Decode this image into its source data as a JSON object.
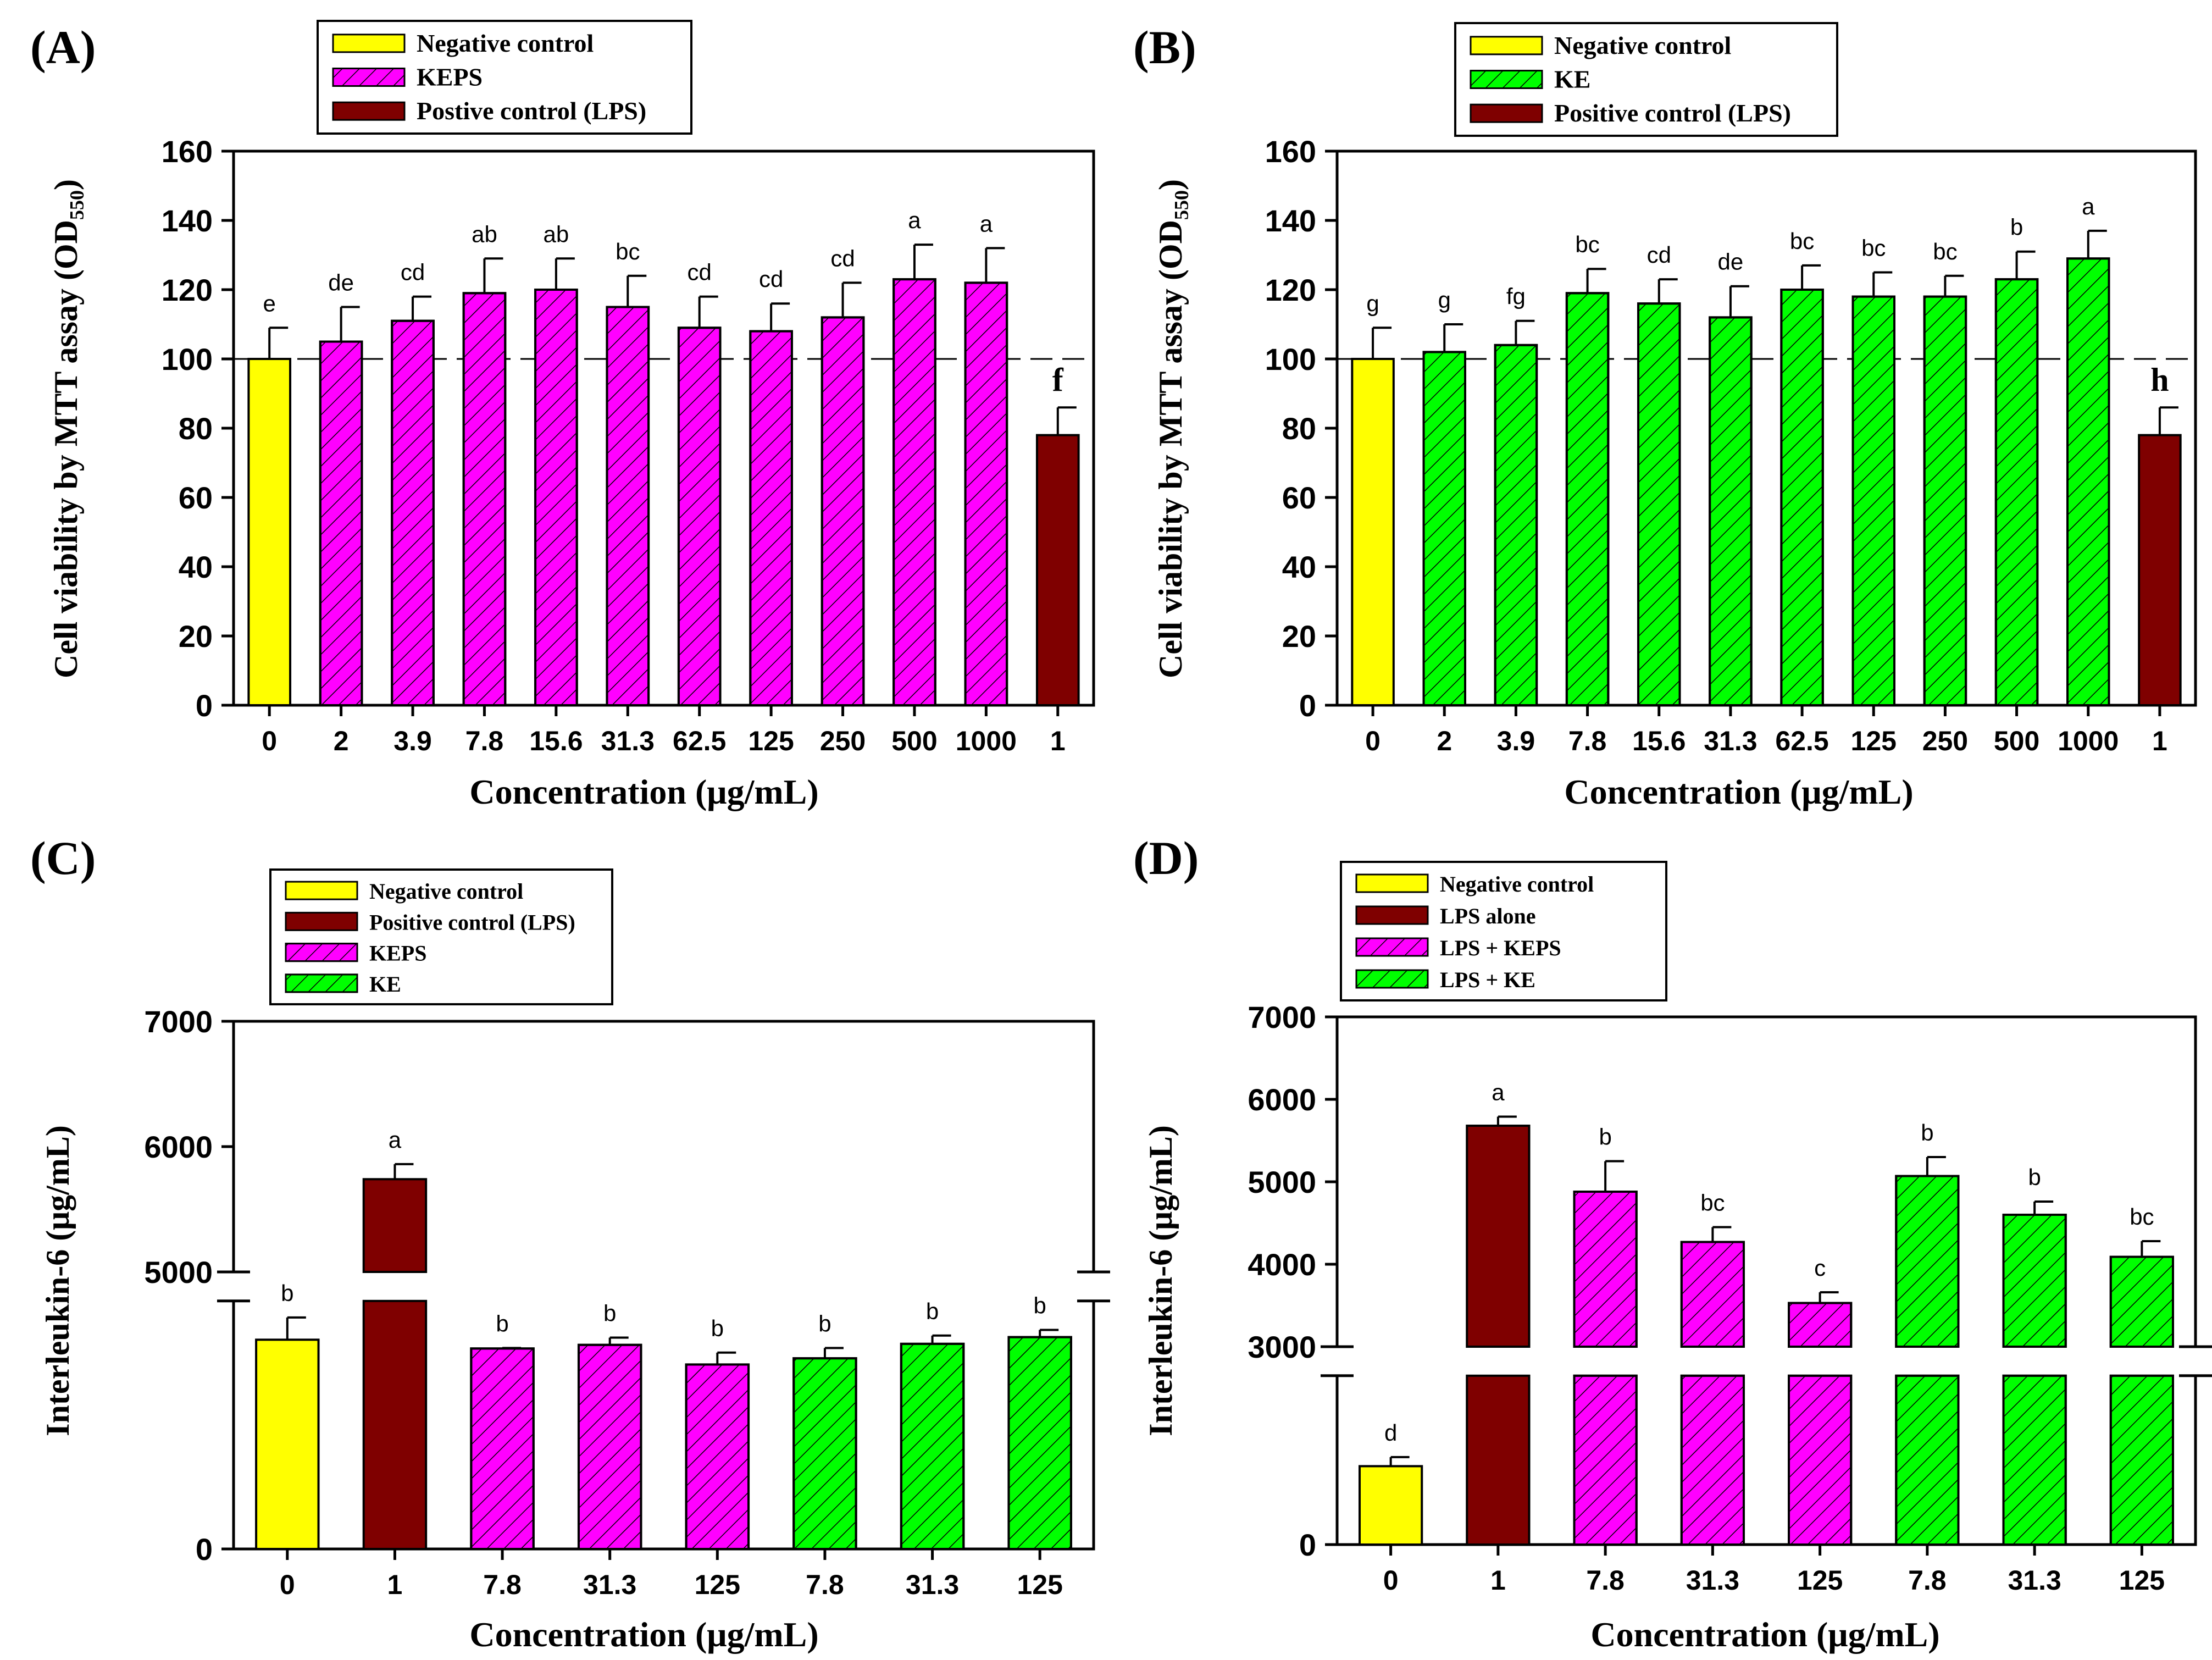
{
  "colors": {
    "negative": "#ffff00",
    "lps": "#7f0000",
    "keps": "#ff00ff",
    "ke": "#00ff00",
    "axis": "#000000"
  },
  "chart_data": [
    {
      "id": "A",
      "type": "bar",
      "panel_label": "(A)",
      "xlabel": "Concentration (μg/mL)",
      "ylabel": "Cell viability by MTT assay (OD₅₅₀)",
      "ylim": [
        0,
        160
      ],
      "yticks": [
        "0",
        "20",
        "40",
        "60",
        "80",
        "100",
        "120",
        "140",
        "160"
      ],
      "reference_line": 100,
      "categories": [
        "0",
        "2",
        "3.9",
        "7.8",
        "15.6",
        "31.3",
        "62.5",
        "125",
        "250",
        "500",
        "1000",
        "1"
      ],
      "values": [
        100,
        105,
        111,
        119,
        120,
        115,
        109,
        108,
        112,
        123,
        122,
        78
      ],
      "errors": [
        9,
        10,
        7,
        10,
        9,
        9,
        9,
        8,
        10,
        10,
        10,
        8
      ],
      "groups": [
        "negative",
        "keps",
        "keps",
        "keps",
        "keps",
        "keps",
        "keps",
        "keps",
        "keps",
        "keps",
        "keps",
        "lps"
      ],
      "letters": [
        "e",
        "de",
        "cd",
        "ab",
        "ab",
        "bc",
        "cd",
        "cd",
        "cd",
        "a",
        "a",
        "f"
      ],
      "legend": [
        {
          "label": "Negative control",
          "group": "negative"
        },
        {
          "label": "KEPS",
          "group": "keps"
        },
        {
          "label": "Postive control (LPS)",
          "group": "lps"
        }
      ]
    },
    {
      "id": "B",
      "type": "bar",
      "panel_label": "(B)",
      "xlabel": "Concentration (μg/mL)",
      "ylabel": "Cell viability by MTT assay (OD₅₅₀)",
      "ylim": [
        0,
        160
      ],
      "yticks": [
        "0",
        "20",
        "40",
        "60",
        "80",
        "100",
        "120",
        "140",
        "160"
      ],
      "reference_line": 100,
      "categories": [
        "0",
        "2",
        "3.9",
        "7.8",
        "15.6",
        "31.3",
        "62.5",
        "125",
        "250",
        "500",
        "1000",
        "1"
      ],
      "values": [
        100,
        102,
        104,
        119,
        116,
        112,
        120,
        118,
        118,
        123,
        129,
        78
      ],
      "errors": [
        9,
        8,
        7,
        7,
        7,
        9,
        7,
        7,
        6,
        8,
        8,
        8
      ],
      "groups": [
        "negative",
        "ke",
        "ke",
        "ke",
        "ke",
        "ke",
        "ke",
        "ke",
        "ke",
        "ke",
        "ke",
        "lps"
      ],
      "letters": [
        "g",
        "g",
        "fg",
        "bc",
        "cd",
        "de",
        "bc",
        "bc",
        "bc",
        "b",
        "a",
        "h"
      ],
      "legend": [
        {
          "label": "Negative control",
          "group": "negative"
        },
        {
          "label": "KE",
          "group": "ke"
        },
        {
          "label": "Positive control (LPS)",
          "group": "lps"
        }
      ]
    },
    {
      "id": "C",
      "type": "bar",
      "panel_label": "(C)",
      "xlabel": "Concentration (μg/mL)",
      "ylabel": "Interleukin-6 (μg/mL)",
      "axis_break": {
        "lower_range": [
          0,
          4800
        ],
        "upper_range": [
          5000,
          7000
        ]
      },
      "yticks": [
        "0",
        "5000",
        "6000",
        "7000"
      ],
      "categories": [
        "0",
        "1",
        "7.8",
        "31.3",
        "125",
        "7.8",
        "31.3",
        "125"
      ],
      "values": [
        4050,
        5740,
        3880,
        3950,
        3570,
        3690,
        3970,
        4100
      ],
      "errors": [
        430,
        120,
        10,
        140,
        230,
        200,
        160,
        140
      ],
      "groups": [
        "negative",
        "lps",
        "keps",
        "keps",
        "keps",
        "ke",
        "ke",
        "ke"
      ],
      "letters": [
        "b",
        "a",
        "b",
        "b",
        "b",
        "b",
        "b",
        "b"
      ],
      "legend": [
        {
          "label": "Negative control",
          "group": "negative"
        },
        {
          "label": "Positive control (LPS)",
          "group": "lps"
        },
        {
          "label": "KEPS",
          "group": "keps"
        },
        {
          "label": "KE",
          "group": "ke"
        }
      ]
    },
    {
      "id": "D",
      "type": "bar",
      "panel_label": "(D)",
      "xlabel": "Concentration (μg/mL)",
      "ylabel": "Interleukin-6 (μg/mL)",
      "axis_break": {
        "lower_range": [
          0,
          2800
        ],
        "upper_range": [
          3000,
          7000
        ]
      },
      "yticks": [
        "0",
        "3000",
        "4000",
        "5000",
        "6000",
        "7000"
      ],
      "categories": [
        "0",
        "1",
        "7.8",
        "31.3",
        "125",
        "7.8",
        "31.3",
        "125"
      ],
      "values": [
        1300,
        5680,
        4880,
        4270,
        3530,
        5070,
        4600,
        4090
      ],
      "errors": [
        150,
        110,
        370,
        180,
        130,
        230,
        160,
        190
      ],
      "groups": [
        "negative",
        "lps",
        "keps",
        "keps",
        "keps",
        "ke",
        "ke",
        "ke"
      ],
      "letters": [
        "d",
        "a",
        "b",
        "bc",
        "c",
        "b",
        "b",
        "bc"
      ],
      "legend": [
        {
          "label": "Negative control",
          "group": "negative"
        },
        {
          "label": "LPS alone",
          "group": "lps"
        },
        {
          "label": "LPS + KEPS",
          "group": "keps"
        },
        {
          "label": "LPS + KE",
          "group": "ke"
        }
      ]
    }
  ]
}
